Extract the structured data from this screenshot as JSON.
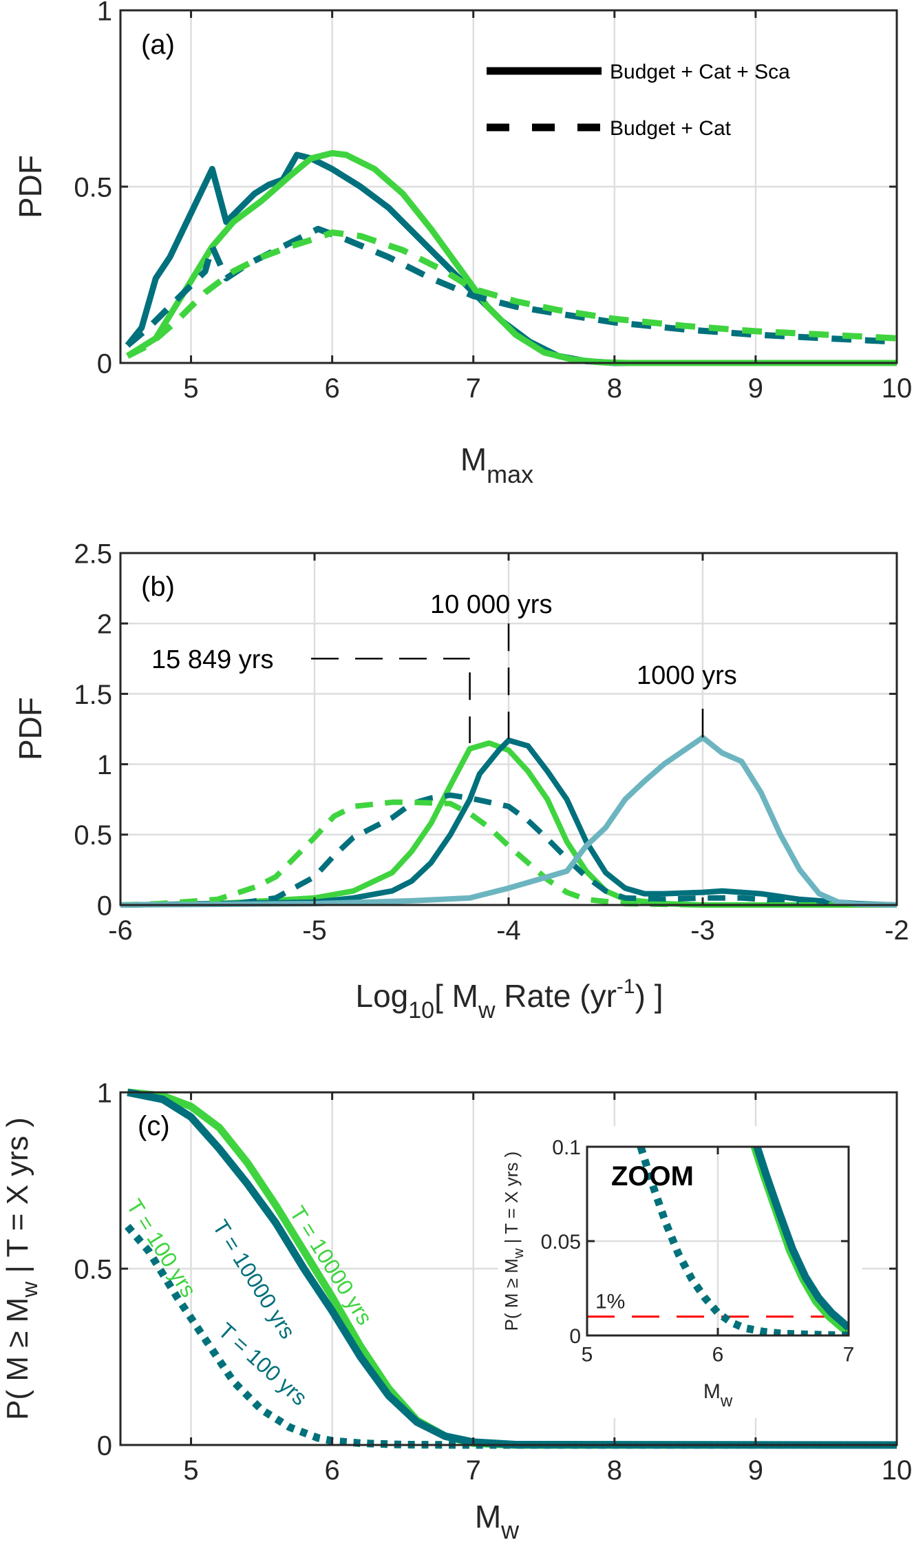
{
  "chart_data": [
    {
      "type": "line",
      "panel": "(a)",
      "title": "",
      "xlabel": "M",
      "xlabel_sub": "max",
      "ylabel": "PDF",
      "xlim": [
        4.5,
        10
      ],
      "ylim": [
        0,
        1
      ],
      "xticks": [
        5,
        6,
        7,
        8,
        9,
        10
      ],
      "yticks": [
        0,
        0.5,
        1
      ],
      "xtick_labels": [
        "5",
        "6",
        "7",
        "8",
        "9",
        "10"
      ],
      "ytick_labels": [
        "0",
        "0.5",
        "1"
      ],
      "grid": true,
      "legend": {
        "position": "top-right",
        "entries": [
          {
            "label": "Budget + Cat + Sca",
            "style": "solid"
          },
          {
            "label": "Budget + Cat",
            "style": "dashed"
          }
        ]
      },
      "series": [
        {
          "name": "Budget + Cat + Sca (teal)",
          "color": "#00707c",
          "style": "solid",
          "x": [
            4.55,
            4.65,
            4.75,
            4.85,
            5.15,
            5.25,
            5.35,
            5.45,
            5.55,
            5.65,
            5.75,
            5.85,
            6.0,
            6.2,
            6.4,
            6.6,
            6.8,
            7.0,
            7.2,
            7.4,
            7.6,
            7.8,
            8.0,
            10.0
          ],
          "y": [
            0.05,
            0.1,
            0.24,
            0.3,
            0.55,
            0.4,
            0.44,
            0.48,
            0.505,
            0.52,
            0.59,
            0.58,
            0.55,
            0.5,
            0.44,
            0.36,
            0.28,
            0.2,
            0.12,
            0.06,
            0.02,
            0.005,
            0.0,
            0.0
          ]
        },
        {
          "name": "Budget + Cat + Sca (green)",
          "color": "#3fd43f",
          "style": "solid",
          "x": [
            4.55,
            4.75,
            4.95,
            5.15,
            5.3,
            5.5,
            5.7,
            5.85,
            6.0,
            6.1,
            6.3,
            6.5,
            6.7,
            6.9,
            7.1,
            7.3,
            7.5,
            7.7,
            7.9,
            8.1,
            10.0
          ],
          "y": [
            0.02,
            0.07,
            0.2,
            0.33,
            0.4,
            0.46,
            0.53,
            0.58,
            0.595,
            0.59,
            0.55,
            0.48,
            0.38,
            0.27,
            0.16,
            0.08,
            0.03,
            0.01,
            0.002,
            0.0,
            0.0
          ]
        },
        {
          "name": "Budget + Cat (teal)",
          "color": "#00707c",
          "style": "dashed",
          "x": [
            4.55,
            4.7,
            4.9,
            5.1,
            5.15,
            5.25,
            5.4,
            5.6,
            5.7,
            5.9,
            6.1,
            6.4,
            6.7,
            7.0,
            7.3,
            7.6,
            8.0,
            8.5,
            9.0,
            9.5,
            10.0
          ],
          "y": [
            0.05,
            0.1,
            0.18,
            0.26,
            0.33,
            0.24,
            0.28,
            0.32,
            0.34,
            0.38,
            0.35,
            0.3,
            0.24,
            0.19,
            0.16,
            0.14,
            0.115,
            0.095,
            0.08,
            0.07,
            0.06
          ]
        },
        {
          "name": "Budget + Cat (green)",
          "color": "#3fd43f",
          "style": "dashed",
          "x": [
            4.55,
            4.7,
            4.9,
            5.1,
            5.3,
            5.5,
            5.7,
            5.9,
            6.0,
            6.2,
            6.5,
            6.8,
            7.0,
            7.3,
            7.6,
            8.0,
            8.5,
            9.0,
            9.5,
            10.0
          ],
          "y": [
            0.02,
            0.05,
            0.12,
            0.2,
            0.26,
            0.3,
            0.33,
            0.355,
            0.37,
            0.36,
            0.32,
            0.26,
            0.21,
            0.175,
            0.15,
            0.125,
            0.105,
            0.09,
            0.08,
            0.07
          ]
        }
      ]
    },
    {
      "type": "line",
      "panel": "(b)",
      "title": "",
      "xlabel": "Log10[ Mw Rate (yr-1) ]",
      "xlabel_parts": {
        "log": "Log",
        "log_sub": "10",
        "open": "[ M",
        "mw_sub": "w",
        "rate": " Rate (yr",
        "exp": "-1",
        "close": ") ]"
      },
      "ylabel": "PDF",
      "xlim": [
        -6,
        -2
      ],
      "ylim": [
        0,
        2.5
      ],
      "xticks": [
        -6,
        -5,
        -4,
        -3,
        -2
      ],
      "yticks": [
        0,
        0.5,
        1,
        1.5,
        2,
        2.5
      ],
      "xtick_labels": [
        "-6",
        "-5",
        "-4",
        "-3",
        "-2"
      ],
      "ytick_labels": [
        "0",
        "0.5",
        "1",
        "1.5",
        "2",
        "2.5"
      ],
      "grid": true,
      "annotations": [
        {
          "text": "15 849 yrs",
          "x": -4.2,
          "y_peak": 1.15,
          "y_line": 1.75
        },
        {
          "text": "10 000 yrs",
          "x": -4.0,
          "y_peak": 1.18,
          "y_top": 2.0
        },
        {
          "text": "1000 yrs",
          "x": -3.0,
          "y_peak": 1.19,
          "y_top": 1.4
        }
      ],
      "series": [
        {
          "name": "Budget + Cat + Sca (green)",
          "color": "#3fd43f",
          "style": "solid",
          "x": [
            -6,
            -5.5,
            -5,
            -4.8,
            -4.6,
            -4.5,
            -4.4,
            -4.3,
            -4.25,
            -4.2,
            -4.1,
            -4.0,
            -3.9,
            -3.8,
            -3.7,
            -3.6,
            -3.5,
            -3.4,
            -3.2,
            -3.0,
            -2.0
          ],
          "y": [
            0,
            0.01,
            0.05,
            0.1,
            0.23,
            0.38,
            0.58,
            0.85,
            0.98,
            1.11,
            1.15,
            1.1,
            0.95,
            0.75,
            0.45,
            0.24,
            0.1,
            0.04,
            0.01,
            0,
            0
          ]
        },
        {
          "name": "Budget + Cat + Sca (teal)",
          "color": "#00707c",
          "style": "solid",
          "x": [
            -6,
            -5,
            -4.8,
            -4.6,
            -4.5,
            -4.4,
            -4.3,
            -4.2,
            -4.15,
            -4.05,
            -4.0,
            -3.9,
            -3.8,
            -3.7,
            -3.6,
            -3.5,
            -3.4,
            -3.3,
            -3.2,
            -3.0,
            -2.9,
            -2.7,
            -2.5,
            -2.2,
            -2.0
          ],
          "y": [
            0,
            0.02,
            0.05,
            0.1,
            0.17,
            0.3,
            0.5,
            0.75,
            0.93,
            1.1,
            1.17,
            1.13,
            0.95,
            0.75,
            0.45,
            0.23,
            0.12,
            0.08,
            0.08,
            0.09,
            0.1,
            0.08,
            0.04,
            0.01,
            0
          ]
        },
        {
          "name": "Budget + Cat (teal)",
          "color": "#00707c",
          "style": "dashed",
          "x": [
            -6,
            -5.4,
            -5.2,
            -5.0,
            -4.9,
            -4.8,
            -4.6,
            -4.5,
            -4.4,
            -4.3,
            -4.2,
            -4.0,
            -3.9,
            -3.8,
            -3.7,
            -3.6,
            -3.5,
            -3.4,
            -3.2,
            -3.0,
            -2.8,
            -2.6,
            -2.3,
            -2.0
          ],
          "y": [
            0,
            0.01,
            0.05,
            0.2,
            0.35,
            0.48,
            0.62,
            0.72,
            0.76,
            0.78,
            0.76,
            0.7,
            0.6,
            0.47,
            0.33,
            0.2,
            0.1,
            0.05,
            0.04,
            0.05,
            0.05,
            0.03,
            0.01,
            0
          ]
        },
        {
          "name": "Budget + Cat (green)",
          "color": "#3fd43f",
          "style": "dashed",
          "x": [
            -6,
            -5.8,
            -5.5,
            -5.3,
            -5.2,
            -5.1,
            -5.0,
            -4.9,
            -4.8,
            -4.6,
            -4.5,
            -4.3,
            -4.2,
            -4.1,
            -4.0,
            -3.9,
            -3.8,
            -3.7,
            -3.6,
            -3.4,
            -3.0,
            -2.0
          ],
          "y": [
            0,
            0.01,
            0.04,
            0.13,
            0.2,
            0.34,
            0.48,
            0.63,
            0.7,
            0.73,
            0.73,
            0.72,
            0.65,
            0.55,
            0.42,
            0.3,
            0.18,
            0.09,
            0.04,
            0.01,
            0,
            0
          ]
        },
        {
          "name": "1000 yrs (light blue)",
          "color": "#6cb5c0",
          "style": "solid",
          "x": [
            -6,
            -5,
            -4.5,
            -4.2,
            -4.0,
            -3.8,
            -3.7,
            -3.6,
            -3.5,
            -3.4,
            -3.3,
            -3.2,
            -3.0,
            -2.9,
            -2.8,
            -2.7,
            -2.6,
            -2.5,
            -2.4,
            -2.3,
            -2.2,
            -2.0
          ],
          "y": [
            0,
            0.01,
            0.03,
            0.05,
            0.12,
            0.2,
            0.24,
            0.42,
            0.55,
            0.75,
            0.88,
            1.0,
            1.19,
            1.08,
            1.02,
            0.8,
            0.5,
            0.25,
            0.08,
            0.02,
            0.005,
            0
          ]
        }
      ]
    },
    {
      "type": "line",
      "panel": "(c)",
      "title": "",
      "xlabel": "Mw",
      "xlabel_parts": {
        "main": "M",
        "sub": "w"
      },
      "ylabel": "P( M ≥ Mw | T = X yrs )",
      "ylabel_parts": {
        "pre": "P( M ≥ M",
        "sub": "w",
        "post": " | T = X yrs )"
      },
      "xlim": [
        4.5,
        10
      ],
      "ylim": [
        0,
        1
      ],
      "xticks": [
        5,
        6,
        7,
        8,
        9,
        10
      ],
      "yticks": [
        0,
        0.5,
        1
      ],
      "xtick_labels": [
        "5",
        "6",
        "7",
        "8",
        "9",
        "10"
      ],
      "ytick_labels": [
        "0",
        "0.5",
        "1"
      ],
      "grid": true,
      "curve_labels": [
        {
          "text": "T = 100 yrs",
          "color": "#3fd43f"
        },
        {
          "text": "T = 10000 yrs",
          "color": "#00707c"
        },
        {
          "text": "T = 10000 yrs",
          "color": "#3fd43f"
        },
        {
          "text": "T = 100 yrs",
          "color": "#00707c"
        }
      ],
      "series": [
        {
          "name": "T = 10000 yrs (green)",
          "color": "#3fd43f",
          "style": "solid",
          "x": [
            4.55,
            4.8,
            5.0,
            5.2,
            5.4,
            5.6,
            5.8,
            6.0,
            6.2,
            6.4,
            6.6,
            6.8,
            7.0,
            7.3,
            10.0
          ],
          "y": [
            1,
            0.99,
            0.96,
            0.9,
            0.8,
            0.68,
            0.55,
            0.42,
            0.28,
            0.16,
            0.07,
            0.025,
            0.005,
            0,
            0
          ]
        },
        {
          "name": "T = 10000 yrs (teal)",
          "color": "#00707c",
          "style": "solid",
          "x": [
            4.55,
            4.8,
            5.0,
            5.2,
            5.3,
            5.4,
            5.6,
            5.8,
            6.0,
            6.2,
            6.4,
            6.6,
            6.8,
            7.0,
            7.3,
            10.0
          ],
          "y": [
            1,
            0.98,
            0.93,
            0.84,
            0.79,
            0.74,
            0.63,
            0.5,
            0.38,
            0.25,
            0.14,
            0.065,
            0.025,
            0.008,
            0.001,
            0
          ]
        },
        {
          "name": "T = 100 yrs (green)",
          "color": "#3fd43f",
          "style": "dotted",
          "x": [
            4.55,
            4.7,
            4.9,
            5.1,
            5.3,
            5.5,
            5.7,
            5.9,
            6.0,
            6.2,
            6.5,
            7.0,
            10.0
          ],
          "y": [
            0.62,
            0.55,
            0.42,
            0.3,
            0.18,
            0.1,
            0.05,
            0.02,
            0.012,
            0.005,
            0.001,
            0,
            0
          ]
        },
        {
          "name": "T = 100 yrs (teal)",
          "color": "#00707c",
          "style": "dotted",
          "x": [
            4.55,
            4.7,
            4.9,
            5.1,
            5.3,
            5.5,
            5.7,
            5.9,
            6.0,
            6.2,
            6.5,
            7.0,
            10.0
          ],
          "y": [
            0.62,
            0.55,
            0.42,
            0.3,
            0.18,
            0.1,
            0.05,
            0.02,
            0.012,
            0.005,
            0.001,
            0,
            0
          ]
        }
      ],
      "inset": {
        "title": "ZOOM",
        "xlabel": "Mw",
        "xlabel_parts": {
          "main": "M",
          "sub": "w"
        },
        "ylabel_parts": {
          "pre": "P( M ≥ M",
          "sub": "w",
          "post": " | T = X yrs )"
        },
        "xlim": [
          5,
          7
        ],
        "ylim": [
          0,
          0.1
        ],
        "xticks": [
          5,
          6,
          7
        ],
        "yticks": [
          0,
          0.05,
          0.1
        ],
        "xtick_labels": [
          "5",
          "6",
          "7"
        ],
        "ytick_labels": [
          "0",
          "0.05",
          "0.1"
        ],
        "threshold": {
          "value": 0.01,
          "label": "1%",
          "color": "#ff0000",
          "style": "dashed"
        },
        "series_ref": "same as panel (c)",
        "inset_series": [
          {
            "color": "#3fd43f",
            "style": "solid",
            "x": [
              6.28,
              6.35,
              6.45,
              6.55,
              6.65,
              6.75,
              6.85,
              6.95,
              7.0
            ],
            "y": [
              0.1,
              0.085,
              0.065,
              0.045,
              0.03,
              0.018,
              0.01,
              0.004,
              0.002
            ]
          },
          {
            "color": "#00707c",
            "style": "solid",
            "x": [
              6.3,
              6.37,
              6.47,
              6.57,
              6.67,
              6.77,
              6.87,
              6.97,
              7.0
            ],
            "y": [
              0.1,
              0.085,
              0.065,
              0.046,
              0.031,
              0.02,
              0.012,
              0.006,
              0.004
            ]
          },
          {
            "color": "#3fd43f",
            "style": "dotted",
            "x": [
              5.41,
              5.5,
              5.6,
              5.7,
              5.8,
              5.9,
              6.0,
              6.1,
              6.2,
              6.35,
              6.5,
              6.7,
              6.9,
              7.0
            ],
            "y": [
              0.1,
              0.08,
              0.06,
              0.043,
              0.03,
              0.02,
              0.012,
              0.007,
              0.004,
              0.002,
              0.001,
              0.0005,
              0.0002,
              0.0001
            ]
          },
          {
            "color": "#00707c",
            "style": "dotted",
            "x": [
              5.41,
              5.5,
              5.6,
              5.7,
              5.8,
              5.9,
              6.0,
              6.1,
              6.2,
              6.35,
              6.5,
              6.7,
              6.9,
              7.0
            ],
            "y": [
              0.1,
              0.08,
              0.06,
              0.043,
              0.03,
              0.02,
              0.012,
              0.007,
              0.004,
              0.002,
              0.001,
              0.0005,
              0.0002,
              0.0001
            ]
          }
        ]
      }
    }
  ]
}
